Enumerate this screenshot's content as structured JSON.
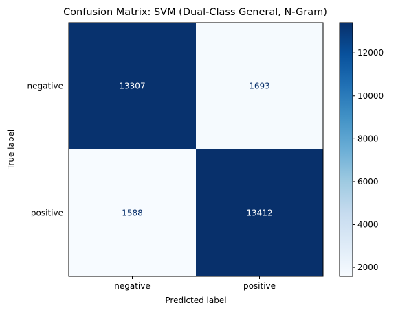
{
  "chart_data": {
    "type": "heatmap",
    "title": "Confusion Matrix: SVM (Dual-Class General, N-Gram)",
    "xlabel": "Predicted label",
    "ylabel": "True label",
    "x_categories": [
      "negative",
      "positive"
    ],
    "y_categories": [
      "negative",
      "positive"
    ],
    "values": [
      [
        13307,
        1693
      ],
      [
        1588,
        13412
      ]
    ],
    "colormap": "Blues",
    "colorbar": {
      "vmin": 1588,
      "vmax": 13412,
      "ticks": [
        2000,
        4000,
        6000,
        8000,
        10000,
        12000
      ]
    },
    "cell_text_colors": {
      "dark_background": "#ffffff",
      "light_background": "#08306b"
    }
  }
}
